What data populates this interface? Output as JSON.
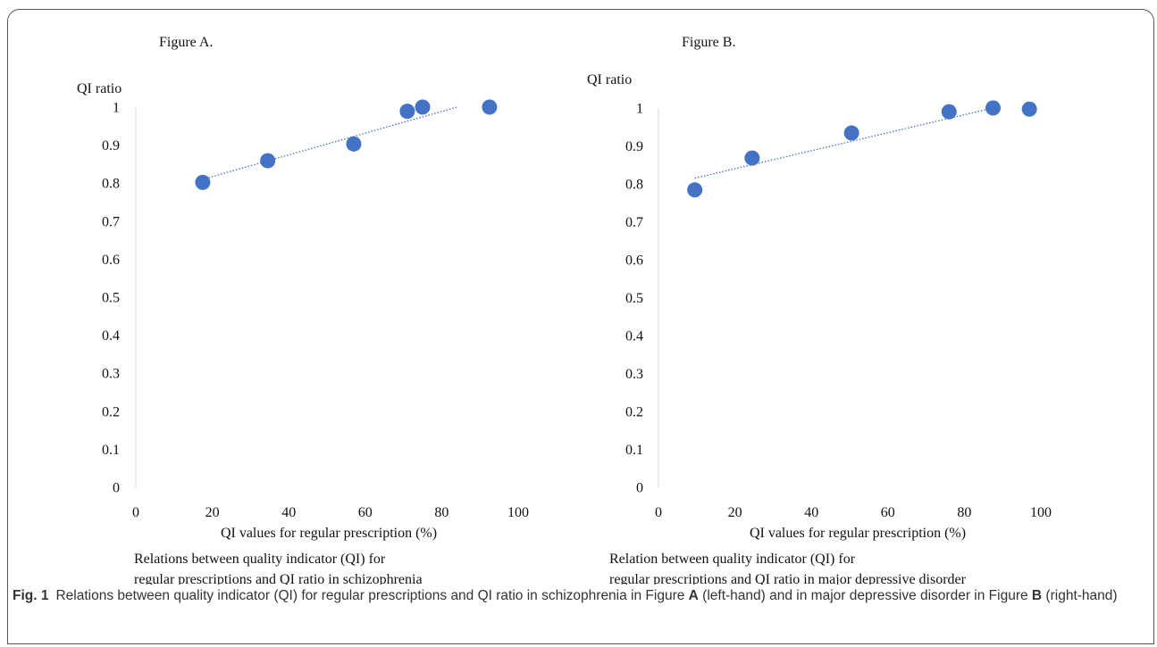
{
  "charts_meta": [
    {
      "id": "A",
      "heading": "Figure A.",
      "ylabel": "QI ratio",
      "xlabel": "QI values for regular prescription (%)",
      "subcaption_line1": "Relations between quality indicator (QI) for",
      "subcaption_line2": "regular prescriptions and QI ratio in schizophrenia"
    },
    {
      "id": "B",
      "heading": "Figure B.",
      "ylabel": "QI ratio",
      "xlabel": "QI values for regular prescription (%)",
      "subcaption_line1": "Relation between quality indicator (QI) for",
      "subcaption_line2": "regular prescriptions and QI ratio in major depressive disorder"
    }
  ],
  "colors": {
    "marker": "#4472C4",
    "trendline": "#4472C4"
  },
  "chart_data": [
    {
      "type": "scatter",
      "title": "Figure A.",
      "xlabel": "QI values for regular prescription (%)",
      "ylabel": "QI ratio",
      "xlim": [
        0,
        100
      ],
      "ylim": [
        0,
        1
      ],
      "xticks": [
        "0",
        "20",
        "40",
        "60",
        "80",
        "100"
      ],
      "yticks": [
        "0",
        "0.1",
        "0.2",
        "0.3",
        "0.4",
        "0.5",
        "0.6",
        "0.7",
        "0.8",
        "0.9",
        "1"
      ],
      "grid": false,
      "series": [
        {
          "points": [
            [
              17.5,
              0.802
            ],
            [
              34.5,
              0.859
            ],
            [
              57.0,
              0.903
            ],
            [
              71.0,
              0.989
            ],
            [
              75.0,
              1.0
            ],
            [
              92.5,
              1.0
            ]
          ]
        }
      ],
      "trendline": {
        "style": "dotted",
        "x": [
          17.5,
          84.0
        ],
        "y": [
          0.81,
          1.0
        ]
      }
    },
    {
      "type": "scatter",
      "title": "Figure B.",
      "xlabel": "QI values for regular prescription (%)",
      "ylabel": "QI ratio",
      "xlim": [
        0,
        100
      ],
      "ylim": [
        0,
        1
      ],
      "xticks": [
        "0",
        "20",
        "40",
        "60",
        "80",
        "100"
      ],
      "yticks": [
        "0",
        "0.1",
        "0.2",
        "0.3",
        "0.4",
        "0.5",
        "0.6",
        "0.7",
        "0.8",
        "0.9",
        "1"
      ],
      "grid": false,
      "series": [
        {
          "points": [
            [
              9.5,
              0.784
            ],
            [
              24.5,
              0.868
            ],
            [
              50.5,
              0.934
            ],
            [
              76.0,
              0.99
            ],
            [
              87.5,
              1.0
            ],
            [
              97.0,
              0.997
            ]
          ]
        }
      ],
      "trendline": {
        "style": "dotted",
        "x": [
          9.5,
          87.5
        ],
        "y": [
          0.815,
          1.0
        ]
      }
    }
  ],
  "figure_caption": {
    "label": "Fig. 1",
    "text_1": "Relations between quality indicator (QI) for regular prescriptions and QI ratio in schizophrenia in Figure ",
    "bold_a": "A",
    "text_2": " (left-hand) and in major depressive disorder in Figure ",
    "bold_b": "B",
    "text_3": " (right-hand)"
  }
}
